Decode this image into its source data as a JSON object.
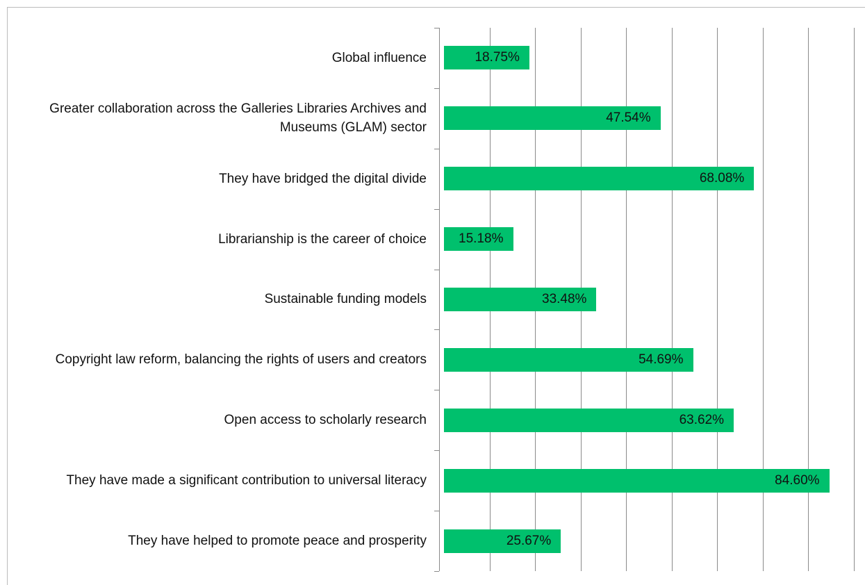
{
  "chart_data": {
    "type": "bar",
    "orientation": "horizontal",
    "categories": [
      "Global influence",
      "Greater collaboration across the Galleries Libraries Archives and Museums (GLAM) sector",
      "They have bridged the digital divide",
      "Librarianship is the career of choice",
      "Sustainable funding models",
      "Copyright law reform, balancing the rights of users and creators",
      "Open access to scholarly research",
      "They have made a significant contribution to universal literacy",
      "They have helped to promote peace and prosperity"
    ],
    "values": [
      18.75,
      47.54,
      68.08,
      15.18,
      33.48,
      54.69,
      63.62,
      84.6,
      25.67
    ],
    "value_labels": [
      "18.75%",
      "47.54%",
      "68.08%",
      "15.18%",
      "33.48%",
      "54.69%",
      "63.62%",
      "84.60%",
      "25.67%"
    ],
    "color": "#00c06d",
    "xlim": [
      0,
      90
    ],
    "xticks": [
      0,
      10,
      20,
      30,
      40,
      50,
      60,
      70,
      80,
      90
    ],
    "grid": true
  }
}
